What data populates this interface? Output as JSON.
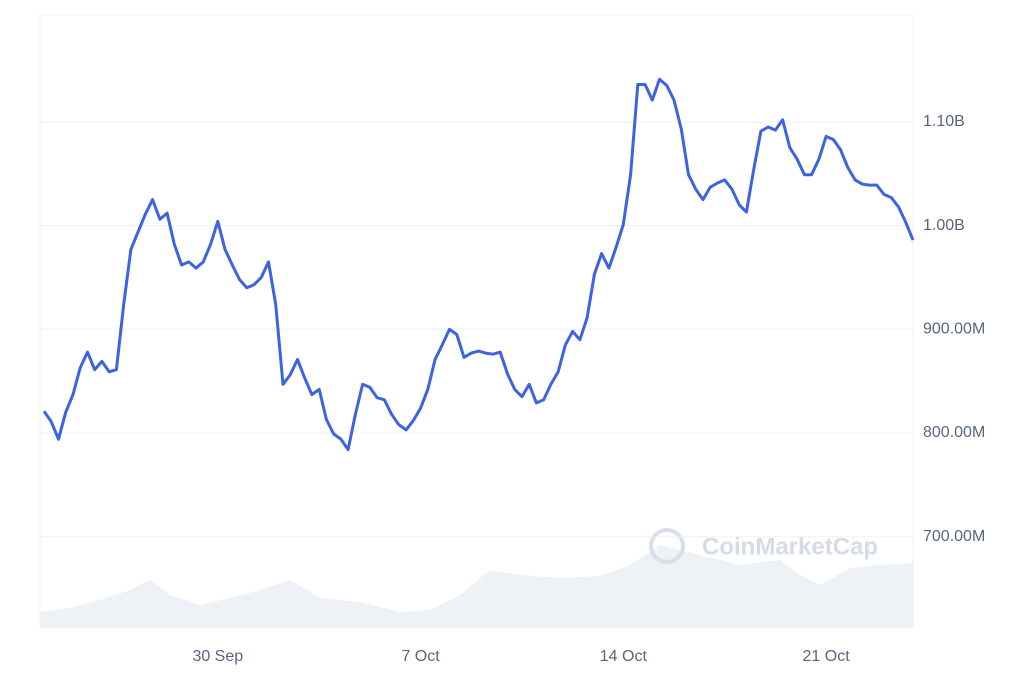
{
  "chart_data": {
    "type": "line",
    "watermark": "CoinMarketCap",
    "categories": [
      null,
      null,
      null,
      null,
      null,
      null,
      null,
      null,
      null,
      null,
      null,
      null,
      null,
      null,
      null,
      null,
      null,
      null,
      null,
      null,
      null,
      null,
      null,
      null,
      "30 Sep",
      null,
      null,
      null,
      null,
      null,
      null,
      null,
      null,
      null,
      null,
      null,
      null,
      null,
      null,
      null,
      null,
      null,
      null,
      null,
      null,
      null,
      null,
      null,
      null,
      null,
      null,
      null,
      "7 Oct",
      null,
      null,
      null,
      null,
      null,
      null,
      null,
      null,
      null,
      null,
      null,
      null,
      null,
      null,
      null,
      null,
      null,
      null,
      null,
      null,
      null,
      null,
      null,
      null,
      null,
      null,
      null,
      "14 Oct",
      null,
      null,
      null,
      null,
      null,
      null,
      null,
      null,
      null,
      null,
      null,
      null,
      null,
      null,
      null,
      null,
      null,
      null,
      null,
      null,
      null,
      null,
      null,
      null,
      null,
      null,
      null,
      "21 Oct",
      null,
      null,
      null,
      null,
      null,
      null,
      null,
      null,
      null,
      null,
      null,
      null
    ],
    "series": [
      {
        "color": "#3d63e0",
        "values": [
          821,
          811,
          794,
          820,
          837,
          863,
          878,
          861,
          869,
          859,
          861,
          924,
          977,
          994,
          1011,
          1025,
          1006,
          1012,
          982,
          962,
          965,
          959,
          965,
          982,
          1004,
          977,
          962,
          948,
          940,
          943,
          950,
          965,
          924,
          847,
          856,
          871,
          853,
          837,
          842,
          813,
          799,
          794,
          784,
          818,
          847,
          844,
          834,
          832,
          818,
          808,
          803,
          812,
          824,
          842,
          871,
          885,
          900,
          895,
          873,
          877,
          879,
          877,
          876,
          878,
          857,
          842,
          835,
          847,
          829,
          832,
          847,
          859,
          885,
          898,
          890,
          911,
          953,
          973,
          959,
          979,
          1001,
          1049,
          1136,
          1136,
          1121,
          1141,
          1135,
          1121,
          1093,
          1049,
          1035,
          1025,
          1037,
          1041,
          1044,
          1035,
          1020,
          1013,
          1054,
          1091,
          1095,
          1092,
          1102,
          1075,
          1064,
          1049,
          1049,
          1064,
          1086,
          1083,
          1073,
          1056,
          1044,
          1040,
          1039,
          1039,
          1030,
          1027,
          1018,
          1003,
          986
        ]
      }
    ],
    "ylim": [
      612,
      1203
    ],
    "yticks": [
      {
        "value": 700,
        "label": "700.00M"
      },
      {
        "value": 800,
        "label": "800.00M"
      },
      {
        "value": 900,
        "label": "900.00M"
      },
      {
        "value": 1000,
        "label": "1.00B"
      },
      {
        "value": 1100,
        "label": "1.10B"
      }
    ],
    "grid": true
  }
}
